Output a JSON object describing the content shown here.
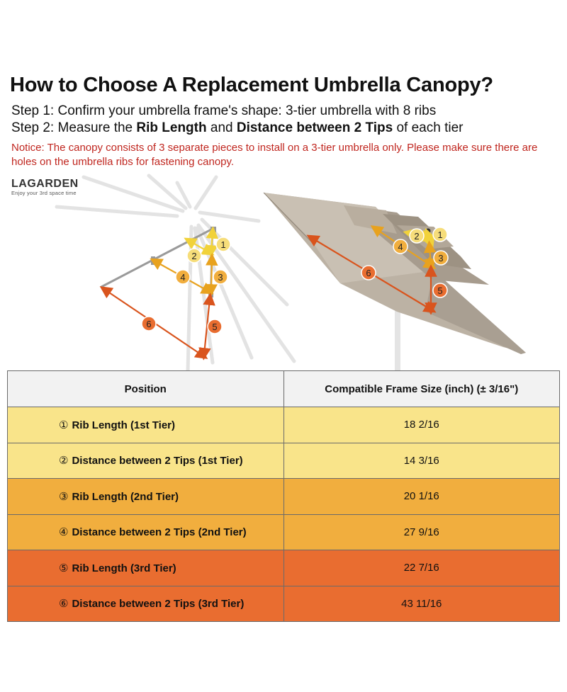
{
  "title": "How to Choose A Replacement Umbrella Canopy?",
  "step1": "Step 1: Confirm your umbrella frame's shape: 3-tier umbrella with 8 ribs",
  "step2": {
    "prefix": "Step 2: Measure the ",
    "bold1": "Rib Length",
    "mid": " and ",
    "bold2": "Distance between 2 Tips",
    "suffix": " of each tier"
  },
  "notice": "Notice: The canopy consists of 3 separate pieces to install on a 3-tier umbrella only. Please make sure there are holes on the umbrella ribs for fastening canopy.",
  "brand": {
    "name": "LAGARDEN",
    "tagline": "Enjoy your 3rd space time"
  },
  "colors": {
    "tier1": "#f9e48a",
    "tier2": "#f1ae3e",
    "tier3": "#e96d30",
    "notice": "#c0261f",
    "canopy": "#b6ab9c"
  },
  "markers": {
    "m1": "1",
    "m2": "2",
    "m3": "3",
    "m4": "4",
    "m5": "5",
    "m6": "6"
  },
  "table": {
    "headers": [
      "Position",
      "Compatible Frame Size (inch) (± 3/16\")"
    ],
    "rows": [
      {
        "num": "①",
        "position": "Rib Length (1st Tier)",
        "size": "18 2/16"
      },
      {
        "num": "②",
        "position": "Distance between 2 Tips (1st Tier)",
        "size": "14 3/16"
      },
      {
        "num": "③",
        "position": "Rib Length (2nd Tier)",
        "size": "20 1/16"
      },
      {
        "num": "④",
        "position": "Distance between 2 Tips (2nd Tier)",
        "size": "27 9/16"
      },
      {
        "num": "⑤",
        "position": "Rib Length (3rd Tier)",
        "size": "22 7/16"
      },
      {
        "num": "⑥",
        "position": "Distance between 2 Tips (3rd Tier)",
        "size": "43 11/16"
      }
    ]
  }
}
